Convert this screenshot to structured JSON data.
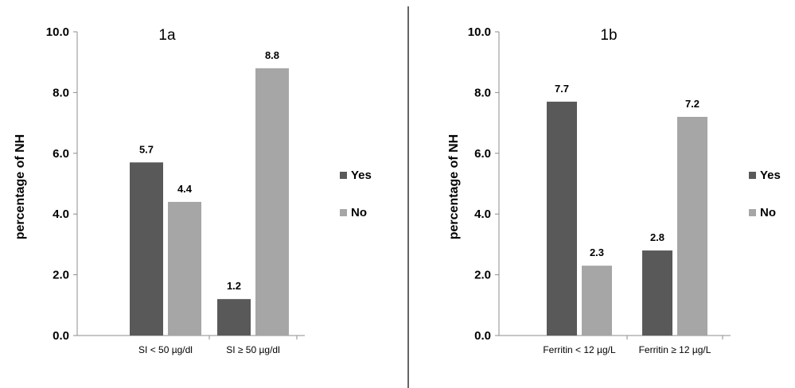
{
  "chart_data": [
    {
      "type": "bar",
      "title": "1a",
      "ylabel": "percentage of NH",
      "xlabel": "",
      "categories": [
        "SI < 50 µg/dl",
        "SI  ≥ 50 µg/dl"
      ],
      "series": [
        {
          "name": "Yes",
          "values": [
            5.7,
            1.2
          ],
          "labels": [
            "5.7",
            "1.2"
          ],
          "color": "#595959"
        },
        {
          "name": "No",
          "values": [
            4.4,
            8.8
          ],
          "labels": [
            "4.4",
            "8.8"
          ],
          "color": "#a6a6a6"
        }
      ],
      "ylim": [
        0,
        10
      ],
      "yticks": [
        "0.0",
        "2.0",
        "4.0",
        "6.0",
        "8.0",
        "10.0"
      ],
      "grid": false,
      "legend": "right"
    },
    {
      "type": "bar",
      "title": "1b",
      "ylabel": "percentage of NH",
      "xlabel": "",
      "categories": [
        "Ferritin < 12 µg/L",
        "Ferritin ≥ 12 µg/L"
      ],
      "series": [
        {
          "name": "Yes",
          "values": [
            7.7,
            2.8
          ],
          "labels": [
            "7.7",
            "2.8"
          ],
          "color": "#595959"
        },
        {
          "name": "No",
          "values": [
            2.3,
            7.2
          ],
          "labels": [
            "2.3",
            "7.2"
          ],
          "color": "#a6a6a6"
        }
      ],
      "ylim": [
        0,
        10
      ],
      "yticks": [
        "0.0",
        "2.0",
        "4.0",
        "6.0",
        "8.0",
        "10.0"
      ],
      "grid": false,
      "legend": "right"
    }
  ]
}
